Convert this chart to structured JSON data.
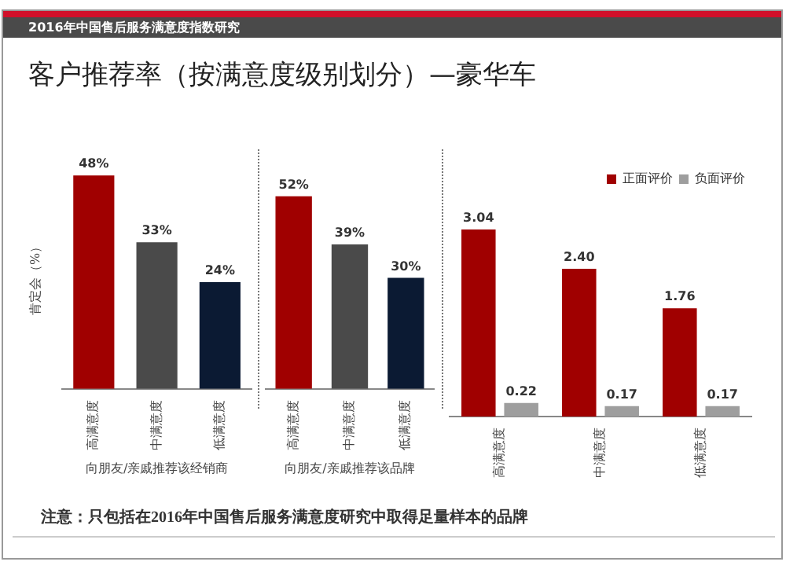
{
  "chart_data": [
    {
      "type": "bar",
      "title": "客户推荐率（按满意度级别划分）—豪华车",
      "subtitle": "2016年中国售后服务满意度指数研究",
      "ylabel": "肯定会（%）",
      "xlabel": "向朋友/亲戚推荐该经销商",
      "categories": [
        "高满意度",
        "中满意度",
        "低满意度"
      ],
      "values": [
        48,
        33,
        24
      ],
      "colors": [
        "#a00000",
        "#4a4a4a",
        "#0b1a33"
      ],
      "data_labels": true,
      "value_labels": [
        "48%",
        "33%",
        "24%"
      ],
      "tick_labels": "x",
      "grid": false,
      "legend": false,
      "annotations": [
        "注意：只包括在2016年中国售后服务满意度研究中取得足量样本的品牌"
      ]
    },
    {
      "type": "bar",
      "xlabel": "向朋友/亲戚推荐该品牌",
      "categories": [
        "高满意度",
        "中满意度",
        "低满意度"
      ],
      "values": [
        52,
        39,
        30
      ],
      "colors": [
        "#a00000",
        "#4a4a4a",
        "#0b1a33"
      ],
      "data_labels": true,
      "value_labels": [
        "52%",
        "39%",
        "30%"
      ],
      "tick_labels": "x",
      "grid": false,
      "legend": false
    },
    {
      "type": "bar",
      "categories": [
        "高满意度",
        "中满意度",
        "低满意度"
      ],
      "series": [
        {
          "name": "正面评价",
          "color": "#a00000",
          "values": [
            3.04,
            2.4,
            1.76
          ],
          "value_labels": [
            "3.04",
            "2.40",
            "1.76"
          ]
        },
        {
          "name": "负面评价",
          "color": "#9e9e9e",
          "values": [
            0.22,
            0.17,
            0.17
          ],
          "value_labels": [
            "0.22",
            "0.17",
            "0.17"
          ]
        }
      ],
      "data_labels": true,
      "tick_labels": "x",
      "grid": false,
      "legend": "top right"
    }
  ]
}
